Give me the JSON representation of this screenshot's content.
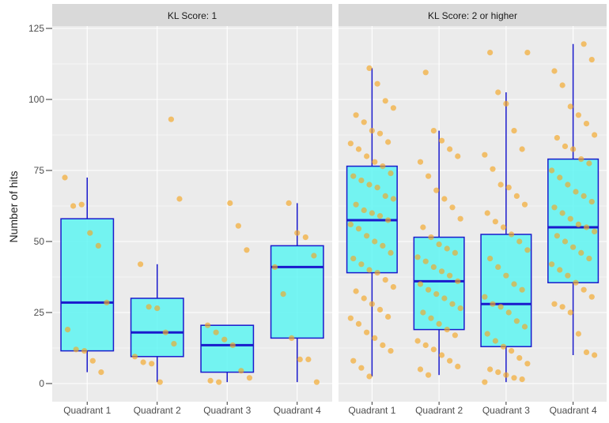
{
  "chart_data": {
    "type": "boxplot",
    "ylabel": "Number of hits",
    "xlabel": "",
    "ylim": [
      0,
      125
    ],
    "yticks": [
      0,
      25,
      50,
      75,
      100,
      125
    ],
    "categories": [
      "Quadrant 1",
      "Quadrant 2",
      "Quadrant 3",
      "Quadrant 4"
    ],
    "grid": true,
    "colors": {
      "panel_bg": "#ebebeb",
      "strip_bg": "#d9d9d9",
      "gridline": "#ffffff",
      "box_fill": "#5ef5f2",
      "box_stroke": "#1a1acc",
      "point": "#f5a623"
    },
    "panels": [
      {
        "strip": "KL Score: 1",
        "boxes": [
          {
            "category": "Quadrant 1",
            "whisker_low": 4,
            "q1": 11.5,
            "median": 28.5,
            "q3": 58,
            "whisker_high": 72.5,
            "points": [
              72.5,
              62.5,
              63,
              53,
              48.5,
              28.5,
              19,
              12,
              11.5,
              8,
              4
            ]
          },
          {
            "category": "Quadrant 2",
            "whisker_low": 0.5,
            "q1": 9.5,
            "median": 18,
            "q3": 30,
            "whisker_high": 42,
            "points": [
              93,
              65,
              42,
              27,
              26.5,
              18,
              14,
              9.5,
              7.5,
              7,
              0.5
            ]
          },
          {
            "category": "Quadrant 3",
            "whisker_low": 0.5,
            "q1": 4,
            "median": 13.5,
            "q3": 20.5,
            "whisker_high": 20.5,
            "points": [
              63.5,
              55.5,
              47,
              20.5,
              18,
              15.5,
              13.5,
              4.5,
              2,
              1,
              0.5
            ]
          },
          {
            "category": "Quadrant 4",
            "whisker_low": 0.5,
            "q1": 16,
            "median": 41,
            "q3": 48.5,
            "whisker_high": 63.5,
            "points": [
              63.5,
              53,
              51.5,
              45,
              41,
              31.5,
              16,
              8.5,
              8.5,
              0.5
            ]
          }
        ]
      },
      {
        "strip": "KL Score: 2 or higher",
        "boxes": [
          {
            "category": "Quadrant 1",
            "whisker_low": 2.5,
            "q1": 39,
            "median": 57.5,
            "q3": 76.5,
            "whisker_high": 111,
            "points": [
              111,
              105.5,
              99.5,
              97,
              94.5,
              92,
              89,
              88,
              85,
              84.5,
              82.5,
              80,
              78,
              76.5,
              74,
              73,
              71.5,
              70,
              69,
              66,
              65,
              63,
              61,
              60,
              59,
              57.5,
              56,
              54.5,
              52,
              50,
              48.5,
              46,
              44,
              42,
              40,
              39,
              36.5,
              34,
              32.5,
              30,
              28,
              26,
              23.5,
              23,
              21,
              18,
              16,
              13.5,
              11.5,
              8,
              5.5,
              2.5
            ]
          },
          {
            "category": "Quadrant 2",
            "whisker_low": 3,
            "q1": 19,
            "median": 36,
            "q3": 51.5,
            "whisker_high": 89,
            "points": [
              109.5,
              89,
              85.5,
              82.5,
              80,
              78,
              73,
              68,
              65,
              62,
              58,
              55,
              51.5,
              49,
              47.5,
              46,
              44.5,
              43,
              41,
              39.5,
              38,
              36,
              35,
              33,
              31.5,
              30,
              28,
              26.5,
              25,
              23,
              21,
              19,
              17,
              15,
              13.5,
              12,
              10,
              8,
              6,
              5,
              3
            ]
          },
          {
            "category": "Quadrant 3",
            "whisker_low": 0.5,
            "q1": 13,
            "median": 28,
            "q3": 52.5,
            "whisker_high": 102.5,
            "points": [
              116.5,
              116.5,
              102.5,
              98.5,
              89,
              82.5,
              80.5,
              75.5,
              70,
              69,
              66,
              63,
              60,
              57,
              55,
              52.5,
              50,
              47,
              44,
              41,
              38,
              35,
              33,
              30.5,
              28,
              27,
              25,
              22,
              20,
              17.5,
              15,
              13,
              11.5,
              9,
              7,
              5,
              4,
              3,
              2,
              1.5,
              0.5
            ]
          },
          {
            "category": "Quadrant 4",
            "whisker_low": 10,
            "q1": 35.5,
            "median": 55,
            "q3": 79,
            "whisker_high": 119.5,
            "points": [
              119.5,
              114,
              110,
              105,
              97.5,
              94.5,
              91.5,
              87.5,
              86.5,
              83.5,
              82.5,
              79,
              77.5,
              75,
              72.5,
              70,
              67.5,
              66,
              64,
              62,
              60,
              58,
              56,
              55,
              53.5,
              52,
              50,
              48,
              46,
              44,
              42,
              40,
              38,
              35.5,
              33,
              30.5,
              28,
              27,
              25,
              17.5,
              11,
              10
            ]
          }
        ]
      }
    ]
  }
}
